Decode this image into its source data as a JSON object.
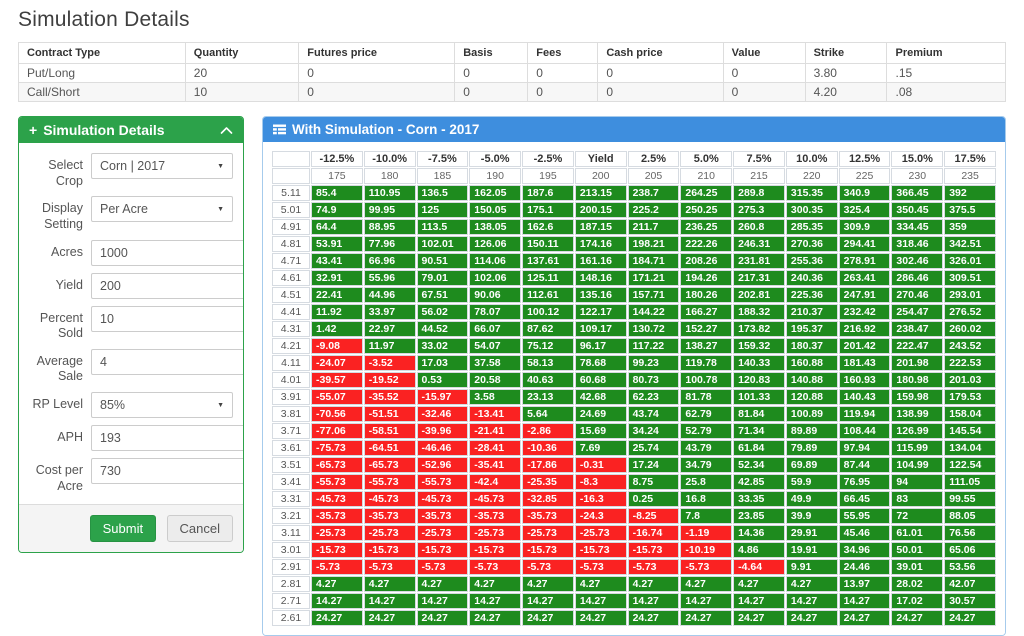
{
  "page_title": "Simulation Details",
  "contracts_table": {
    "headers": [
      "Contract Type",
      "Quantity",
      "Futures price",
      "Basis",
      "Fees",
      "Cash price",
      "Value",
      "Strike",
      "Premium"
    ],
    "col_widths_pct": [
      16.9,
      11.5,
      15.8,
      7.4,
      7.1,
      12.7,
      8.3,
      8.3,
      12.0
    ],
    "rows": [
      [
        "Put/Long",
        "20",
        "0",
        "0",
        "0",
        "0",
        "0",
        "3.80",
        ".15"
      ],
      [
        "Call/Short",
        "10",
        "0",
        "0",
        "0",
        "0",
        "0",
        "4.20",
        ".08"
      ]
    ]
  },
  "form_panel": {
    "title": "Simulation Details",
    "plus_glyph": "+",
    "fields": [
      {
        "label": "Select Crop",
        "type": "select",
        "value": "Corn | 2017"
      },
      {
        "label": "Display Setting",
        "type": "select",
        "value": "Per Acre"
      },
      {
        "label": "Acres",
        "type": "input",
        "value": "1000"
      },
      {
        "label": "Yield",
        "type": "input",
        "value": "200"
      },
      {
        "label": "Percent Sold",
        "type": "input",
        "value": "10"
      },
      {
        "label": "Average Sale",
        "type": "input",
        "value": "4"
      },
      {
        "label": "RP Level",
        "type": "select",
        "value": "85%"
      },
      {
        "label": "APH",
        "type": "input",
        "value": "193"
      },
      {
        "label": "Cost per Acre",
        "type": "input",
        "value": "730"
      }
    ],
    "submit_label": "Submit",
    "cancel_label": "Cancel"
  },
  "simulation_panel": {
    "title": "With Simulation - Corn - 2017",
    "matrix": {
      "col_percent_labels": [
        "-12.5%",
        "-10.0%",
        "-7.5%",
        "-5.0%",
        "-2.5%",
        "Yield",
        "2.5%",
        "5.0%",
        "7.5%",
        "10.0%",
        "12.5%",
        "15.0%",
        "17.5%"
      ],
      "col_price_labels": [
        "175",
        "180",
        "185",
        "190",
        "195",
        "200",
        "205",
        "210",
        "215",
        "220",
        "225",
        "230",
        "235"
      ],
      "rows": [
        {
          "label": "5.11",
          "values": [
            85.4,
            110.95,
            136.5,
            162.05,
            187.6,
            213.15,
            238.7,
            264.25,
            289.8,
            315.35,
            340.9,
            366.45,
            392
          ]
        },
        {
          "label": "5.01",
          "values": [
            74.9,
            99.95,
            125,
            150.05,
            175.1,
            200.15,
            225.2,
            250.25,
            275.3,
            300.35,
            325.4,
            350.45,
            375.5
          ]
        },
        {
          "label": "4.91",
          "values": [
            64.4,
            88.95,
            113.5,
            138.05,
            162.6,
            187.15,
            211.7,
            236.25,
            260.8,
            285.35,
            309.9,
            334.45,
            359
          ]
        },
        {
          "label": "4.81",
          "values": [
            53.91,
            77.96,
            102.01,
            126.06,
            150.11,
            174.16,
            198.21,
            222.26,
            246.31,
            270.36,
            294.41,
            318.46,
            342.51
          ]
        },
        {
          "label": "4.71",
          "values": [
            43.41,
            66.96,
            90.51,
            114.06,
            137.61,
            161.16,
            184.71,
            208.26,
            231.81,
            255.36,
            278.91,
            302.46,
            326.01
          ]
        },
        {
          "label": "4.61",
          "values": [
            32.91,
            55.96,
            79.01,
            102.06,
            125.11,
            148.16,
            171.21,
            194.26,
            217.31,
            240.36,
            263.41,
            286.46,
            309.51
          ]
        },
        {
          "label": "4.51",
          "values": [
            22.41,
            44.96,
            67.51,
            90.06,
            112.61,
            135.16,
            157.71,
            180.26,
            202.81,
            225.36,
            247.91,
            270.46,
            293.01
          ]
        },
        {
          "label": "4.41",
          "values": [
            11.92,
            33.97,
            56.02,
            78.07,
            100.12,
            122.17,
            144.22,
            166.27,
            188.32,
            210.37,
            232.42,
            254.47,
            276.52
          ]
        },
        {
          "label": "4.31",
          "values": [
            1.42,
            22.97,
            44.52,
            66.07,
            87.62,
            109.17,
            130.72,
            152.27,
            173.82,
            195.37,
            216.92,
            238.47,
            260.02
          ]
        },
        {
          "label": "4.21",
          "values": [
            -9.08,
            11.97,
            33.02,
            54.07,
            75.12,
            96.17,
            117.22,
            138.27,
            159.32,
            180.37,
            201.42,
            222.47,
            243.52
          ]
        },
        {
          "label": "4.11",
          "values": [
            -24.07,
            -3.52,
            17.03,
            37.58,
            58.13,
            78.68,
            99.23,
            119.78,
            140.33,
            160.88,
            181.43,
            201.98,
            222.53
          ]
        },
        {
          "label": "4.01",
          "values": [
            -39.57,
            -19.52,
            0.53,
            20.58,
            40.63,
            60.68,
            80.73,
            100.78,
            120.83,
            140.88,
            160.93,
            180.98,
            201.03
          ]
        },
        {
          "label": "3.91",
          "values": [
            -55.07,
            -35.52,
            -15.97,
            3.58,
            23.13,
            42.68,
            62.23,
            81.78,
            101.33,
            120.88,
            140.43,
            159.98,
            179.53
          ]
        },
        {
          "label": "3.81",
          "values": [
            -70.56,
            -51.51,
            -32.46,
            -13.41,
            5.64,
            24.69,
            43.74,
            62.79,
            81.84,
            100.89,
            119.94,
            138.99,
            158.04
          ]
        },
        {
          "label": "3.71",
          "values": [
            -77.06,
            -58.51,
            -39.96,
            -21.41,
            -2.86,
            15.69,
            34.24,
            52.79,
            71.34,
            89.89,
            108.44,
            126.99,
            145.54
          ]
        },
        {
          "label": "3.61",
          "values": [
            -75.73,
            -64.51,
            -46.46,
            -28.41,
            -10.36,
            7.69,
            25.74,
            43.79,
            61.84,
            79.89,
            97.94,
            115.99,
            134.04
          ]
        },
        {
          "label": "3.51",
          "values": [
            -65.73,
            -65.73,
            -52.96,
            -35.41,
            -17.86,
            -0.31,
            17.24,
            34.79,
            52.34,
            69.89,
            87.44,
            104.99,
            122.54
          ]
        },
        {
          "label": "3.41",
          "values": [
            -55.73,
            -55.73,
            -55.73,
            -42.4,
            -25.35,
            -8.3,
            8.75,
            25.8,
            42.85,
            59.9,
            76.95,
            94,
            111.05
          ]
        },
        {
          "label": "3.31",
          "values": [
            -45.73,
            -45.73,
            -45.73,
            -45.73,
            -32.85,
            -16.3,
            0.25,
            16.8,
            33.35,
            49.9,
            66.45,
            83,
            99.55
          ]
        },
        {
          "label": "3.21",
          "values": [
            -35.73,
            -35.73,
            -35.73,
            -35.73,
            -35.73,
            -24.3,
            -8.25,
            7.8,
            23.85,
            39.9,
            55.95,
            72,
            88.05
          ]
        },
        {
          "label": "3.11",
          "values": [
            -25.73,
            -25.73,
            -25.73,
            -25.73,
            -25.73,
            -25.73,
            -16.74,
            -1.19,
            14.36,
            29.91,
            45.46,
            61.01,
            76.56
          ]
        },
        {
          "label": "3.01",
          "values": [
            -15.73,
            -15.73,
            -15.73,
            -15.73,
            -15.73,
            -15.73,
            -15.73,
            -10.19,
            4.86,
            19.91,
            34.96,
            50.01,
            65.06
          ]
        },
        {
          "label": "2.91",
          "values": [
            -5.73,
            -5.73,
            -5.73,
            -5.73,
            -5.73,
            -5.73,
            -5.73,
            -5.73,
            -4.64,
            9.91,
            24.46,
            39.01,
            53.56
          ]
        },
        {
          "label": "2.81",
          "values": [
            4.27,
            4.27,
            4.27,
            4.27,
            4.27,
            4.27,
            4.27,
            4.27,
            4.27,
            4.27,
            13.97,
            28.02,
            42.07
          ]
        },
        {
          "label": "2.71",
          "values": [
            14.27,
            14.27,
            14.27,
            14.27,
            14.27,
            14.27,
            14.27,
            14.27,
            14.27,
            14.27,
            14.27,
            17.02,
            30.57
          ]
        },
        {
          "label": "2.61",
          "values": [
            24.27,
            24.27,
            24.27,
            24.27,
            24.27,
            24.27,
            24.27,
            24.27,
            24.27,
            24.27,
            24.27,
            24.27,
            24.27
          ]
        }
      ]
    }
  },
  "icons": {
    "form_plus": "plus-icon",
    "form_collapse": "chevron-up-icon",
    "sim_header": "table-icon",
    "select_caret": "caret-down-icon"
  },
  "colors": {
    "positive_cell": "#1e8b1e",
    "negative_cell": "#fa2222",
    "panel_green": "#2ca24a",
    "panel_blue": "#3e8ede"
  }
}
